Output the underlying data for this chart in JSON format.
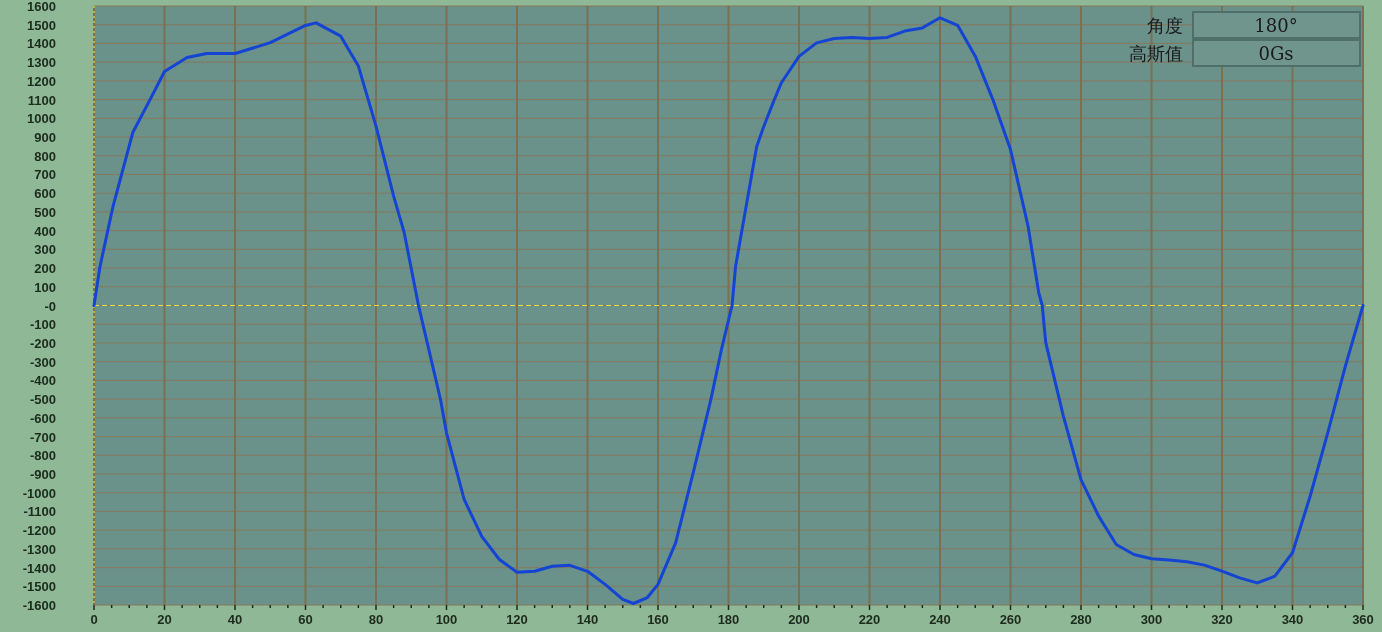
{
  "chart_data": {
    "type": "line",
    "x": [
      0,
      1.7,
      5.4,
      11,
      15.9,
      20,
      26.4,
      32,
      40,
      50,
      60,
      63,
      70,
      75,
      80,
      85,
      88,
      92,
      98.3,
      100,
      105,
      110,
      115,
      120,
      125,
      130,
      135,
      140,
      145,
      150,
      153,
      157,
      160,
      165,
      170,
      175,
      178,
      181,
      182,
      185,
      188,
      190,
      193,
      195,
      200,
      205,
      210,
      215,
      220,
      225,
      230,
      235,
      240,
      245,
      250,
      255,
      260,
      265,
      268,
      269,
      270,
      275,
      280,
      285,
      290,
      295,
      300,
      305,
      310,
      315,
      320,
      325,
      330,
      335,
      340,
      345,
      350,
      355,
      360
    ],
    "series": [
      {
        "color": "#1444d4",
        "values": [
          0,
          208,
          530,
          924,
          1100,
          1250,
          1325,
          1346,
          1346,
          1404,
          1496,
          1510,
          1439,
          1279,
          958,
          584,
          389,
          5,
          -502,
          -680,
          -1036,
          -1233,
          -1357,
          -1425,
          -1420,
          -1393,
          -1388,
          -1420,
          -1490,
          -1570,
          -1592,
          -1560,
          -1490,
          -1268,
          -893,
          -502,
          -235,
          0,
          208,
          529,
          850,
          956,
          1100,
          1190,
          1331,
          1403,
          1426,
          1432,
          1426,
          1432,
          1466,
          1483,
          1537,
          1497,
          1332,
          1100,
          833,
          422,
          69,
          0,
          -198,
          -591,
          -930,
          -1125,
          -1277,
          -1330,
          -1353,
          -1360,
          -1369,
          -1387,
          -1419,
          -1455,
          -1482,
          -1446,
          -1321,
          -1019,
          -680,
          -324,
          0
        ]
      }
    ],
    "xlim": [
      0,
      360
    ],
    "xticks": [
      0,
      {
        "value": 5,
        "label": null
      },
      {
        "value": 10,
        "label": null
      },
      {
        "value": 15,
        "label": null
      },
      20,
      {
        "value": 25,
        "label": null
      },
      {
        "value": 30,
        "label": null
      },
      {
        "value": 35,
        "label": null
      },
      40,
      {
        "value": 45,
        "label": null
      },
      {
        "value": 50,
        "label": null
      },
      {
        "value": 55,
        "label": null
      },
      60,
      {
        "value": 65,
        "label": null
      },
      {
        "value": 70,
        "label": null
      },
      {
        "value": 75,
        "label": null
      },
      80,
      {
        "value": 85,
        "label": null
      },
      {
        "value": 90,
        "label": null
      },
      {
        "value": 95,
        "label": null
      },
      100,
      {
        "value": 105,
        "label": null
      },
      {
        "value": 110,
        "label": null
      },
      {
        "value": 115,
        "label": null
      },
      120,
      {
        "value": 125,
        "label": null
      },
      {
        "value": 130,
        "label": null
      },
      {
        "value": 135,
        "label": null
      },
      140,
      {
        "value": 145,
        "label": null
      },
      {
        "value": 150,
        "label": null
      },
      {
        "value": 155,
        "label": null
      },
      160,
      {
        "value": 165,
        "label": null
      },
      {
        "value": 170,
        "label": null
      },
      {
        "value": 175,
        "label": null
      },
      180,
      {
        "value": 185,
        "label": null
      },
      {
        "value": 190,
        "label": null
      },
      {
        "value": 195,
        "label": null
      },
      200,
      {
        "value": 205,
        "label": null
      },
      {
        "value": 210,
        "label": null
      },
      {
        "value": 215,
        "label": null
      },
      220,
      {
        "value": 225,
        "label": null
      },
      {
        "value": 230,
        "label": null
      },
      {
        "value": 235,
        "label": null
      },
      240,
      {
        "value": 245,
        "label": null
      },
      {
        "value": 250,
        "label": null
      },
      {
        "value": 255,
        "label": null
      },
      260,
      {
        "value": 265,
        "label": null
      },
      {
        "value": 270,
        "label": null
      },
      {
        "value": 275,
        "label": null
      },
      280,
      {
        "value": 285,
        "label": null
      },
      {
        "value": 290,
        "label": null
      },
      {
        "value": 295,
        "label": null
      },
      300,
      {
        "value": 305,
        "label": null
      },
      {
        "value": 310,
        "label": null
      },
      {
        "value": 315,
        "label": null
      },
      320,
      {
        "value": 325,
        "label": null
      },
      {
        "value": 330,
        "label": null
      },
      {
        "value": 335,
        "label": null
      },
      340,
      {
        "value": 345,
        "label": null
      },
      {
        "value": 350,
        "label": null
      },
      {
        "value": 355,
        "label": null
      },
      360
    ],
    "ylim": [
      -1600,
      1600
    ],
    "yticks": [
      -1600,
      -1500,
      -1400,
      -1300,
      -1200,
      -1100,
      -1000,
      -900,
      -800,
      -700,
      -600,
      -500,
      -400,
      -300,
      -200,
      -100,
      {
        "value": 0,
        "label": "-0"
      },
      100,
      200,
      300,
      400,
      500,
      600,
      700,
      800,
      900,
      1000,
      1100,
      1200,
      1300,
      1400,
      1500,
      1600
    ],
    "grid": true,
    "ref_lines": [
      {
        "axis": "y",
        "value": 0,
        "color": "#e8e040",
        "line_style": "dashed"
      },
      {
        "axis": "x",
        "value": 0,
        "color": "#e8e040",
        "line_style": "dotted"
      }
    ],
    "annotations": [
      "角度",
      "180°",
      "高斯值",
      "0Gs"
    ]
  }
}
